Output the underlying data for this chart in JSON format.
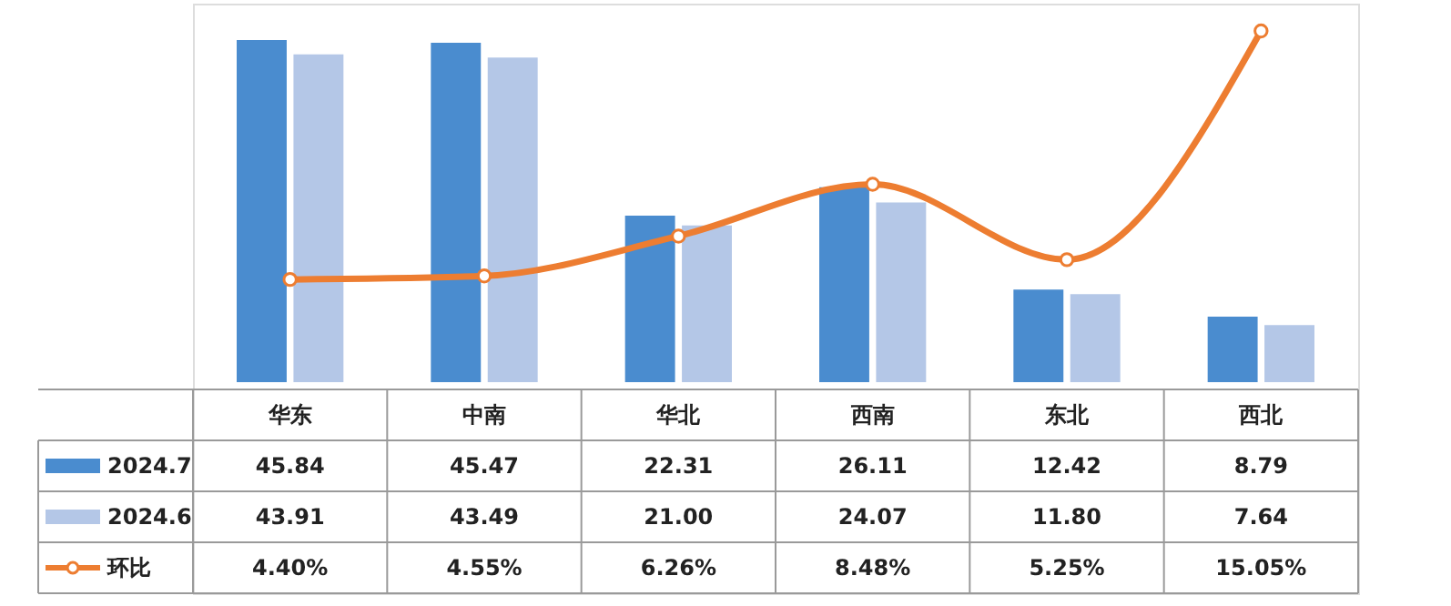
{
  "chart_data": {
    "type": "bar",
    "categories": [
      "华东",
      "中南",
      "华北",
      "西南",
      "东北",
      "西北"
    ],
    "series": [
      {
        "name": "2024.7",
        "color": "#4a8ccf",
        "values": [
          45.84,
          45.47,
          22.31,
          26.11,
          12.42,
          8.79
        ],
        "value_labels": [
          "45.84",
          "45.47",
          "22.31",
          "26.11",
          "12.42",
          "8.79"
        ]
      },
      {
        "name": "2024.6",
        "color": "#b4c7e7",
        "values": [
          43.91,
          43.49,
          21.0,
          24.07,
          11.8,
          7.64
        ],
        "value_labels": [
          "43.91",
          "43.49",
          "21.00",
          "24.07",
          "11.80",
          "7.64"
        ]
      },
      {
        "name": "环比",
        "type": "line",
        "axis": "y2",
        "color": "#ed7d31",
        "values": [
          4.4,
          4.55,
          6.26,
          8.48,
          5.25,
          15.05
        ],
        "value_labels": [
          "4.40%",
          "4.55%",
          "6.26%",
          "8.48%",
          "5.25%",
          "15.05%"
        ]
      }
    ],
    "legend": "bottom left",
    "marker": "circle",
    "line_style": "solid",
    "tick_labels": false
  }
}
